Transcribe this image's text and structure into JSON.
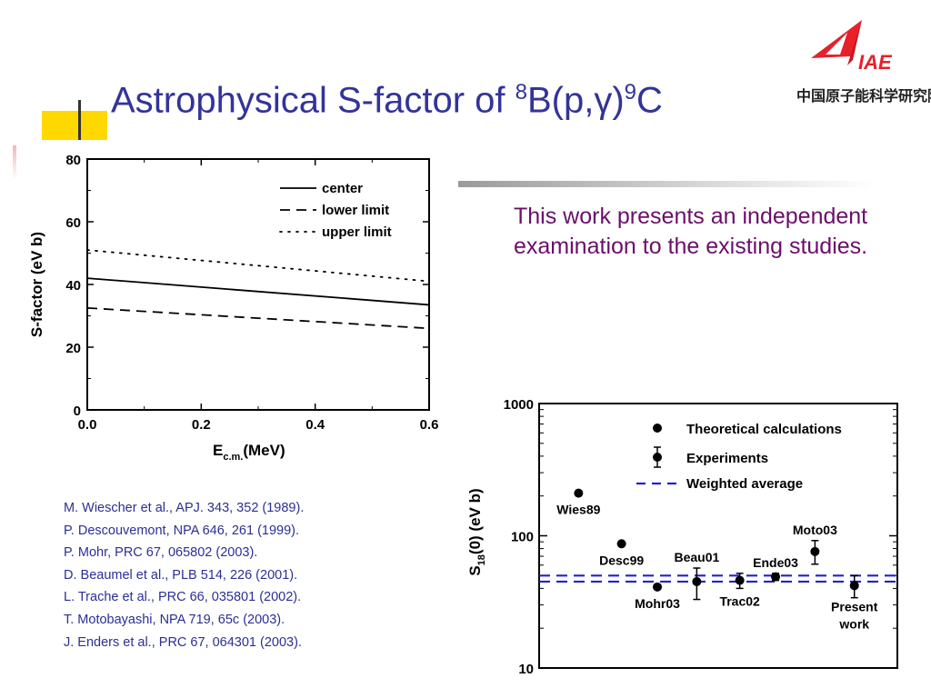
{
  "slide": {
    "title_main": "Astrophysical S-factor of ",
    "title_sup1": "8",
    "title_mid": "B(p,γ)",
    "title_sup2": "9",
    "title_end": "C",
    "description": "This work presents an independent examination to the existing studies.",
    "logo_text": "中国原子能科学研究院",
    "logo_letters": "IAE",
    "references": [
      "M. Wiescher et al., APJ. 343, 352 (1989).",
      "P. Descouvemont, NPA 646, 261 (1999).",
      "P. Mohr, PRC 67, 065802 (2003).",
      "D. Beaumel et al., PLB 514, 226 (2001).",
      "L. Trache et al., PRC 66, 035801 (2002).",
      "T. Motobayashi, NPA 719, 65c (2003).",
      "J. Enders et al., PRC 67, 064301 (2003)."
    ],
    "colors": {
      "title": "#33339a",
      "description": "#6b0f6b",
      "references": "#2b2f94",
      "accent_square": "#ffd800",
      "weighted_average": "#2222cc",
      "logo": "#e8202a"
    }
  },
  "chart_data": [
    {
      "type": "line",
      "xlabel": "E",
      "xlabel_sub": "c.m.",
      "xlabel_unit": "(MeV)",
      "ylabel": "S-factor (eV b)",
      "xlim": [
        0.0,
        0.6
      ],
      "ylim": [
        0,
        80
      ],
      "xticks": [
        0.0,
        0.2,
        0.4,
        0.6
      ],
      "xtick_labels": [
        "0.0",
        "0.2",
        "0.4",
        "0.6"
      ],
      "yticks": [
        0,
        20,
        40,
        60,
        80
      ],
      "ytick_labels": [
        "0",
        "20",
        "40",
        "60",
        "80"
      ],
      "grid": false,
      "legend_position": "top-right",
      "series": [
        {
          "name": "center",
          "style": "solid",
          "x": [
            0.0,
            0.6
          ],
          "y": [
            42,
            33.5
          ]
        },
        {
          "name": "lower limit",
          "style": "dashed",
          "x": [
            0.0,
            0.6
          ],
          "y": [
            32.5,
            26
          ]
        },
        {
          "name": "upper limit",
          "style": "dotted",
          "x": [
            0.0,
            0.6
          ],
          "y": [
            51,
            41
          ]
        }
      ]
    },
    {
      "type": "scatter",
      "ylabel_pre": "S",
      "ylabel_sub": "18",
      "ylabel_post": "(0) (eV b)",
      "yscale": "log",
      "ylim": [
        10,
        1000
      ],
      "yticks": [
        10,
        100,
        1000
      ],
      "ytick_labels": [
        "10",
        "100",
        "1000"
      ],
      "xlim": [
        0,
        10
      ],
      "legend_position": "top-right",
      "legend": [
        "Theoretical calculations",
        "Experiments",
        "Weighted average"
      ],
      "weighted_average": [
        45,
        50
      ],
      "points": [
        {
          "label": "Wies89",
          "x": 1.1,
          "y": 210,
          "kind": "theory",
          "label_pos": "below"
        },
        {
          "label": "Desc99",
          "x": 2.3,
          "y": 87,
          "kind": "theory",
          "label_pos": "below"
        },
        {
          "label": "Mohr03",
          "x": 3.3,
          "y": 41,
          "kind": "theory",
          "label_pos": "below"
        },
        {
          "label": "Beau01",
          "x": 4.4,
          "y": 45,
          "yerr": [
            33,
            57
          ],
          "kind": "experiment",
          "label_pos": "above"
        },
        {
          "label": "Trac02",
          "x": 5.6,
          "y": 46,
          "yerr": [
            40,
            52
          ],
          "kind": "experiment",
          "label_pos": "below"
        },
        {
          "label": "Ende03",
          "x": 6.6,
          "y": 49,
          "yerr": [
            46,
            52
          ],
          "kind": "experiment",
          "label_pos": "above"
        },
        {
          "label": "Moto03",
          "x": 7.7,
          "y": 76,
          "yerr": [
            61,
            92
          ],
          "kind": "experiment",
          "label_pos": "above"
        },
        {
          "label": "Present",
          "label2": "work",
          "x": 8.8,
          "y": 42,
          "yerr": [
            34,
            50
          ],
          "kind": "experiment",
          "label_pos": "below"
        }
      ]
    }
  ]
}
